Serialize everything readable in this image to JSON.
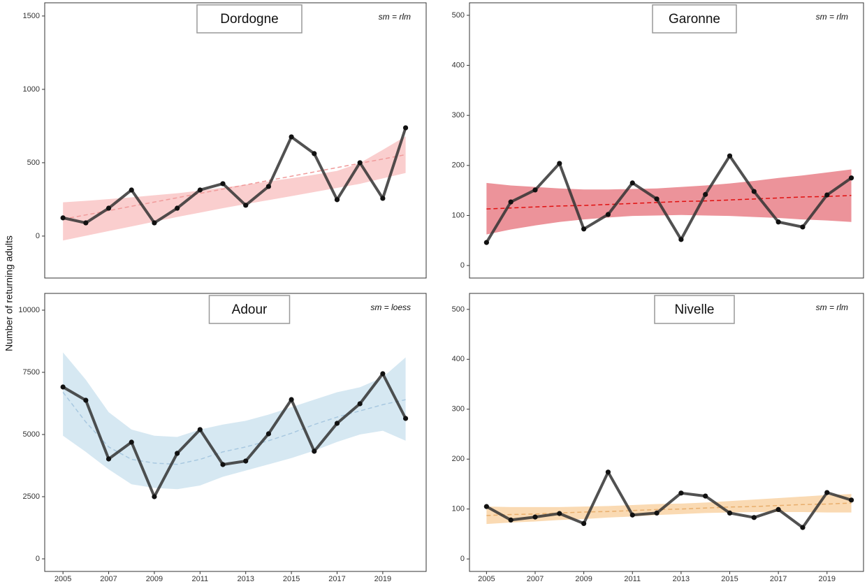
{
  "ylabel": "Number of returning adults",
  "chart_data": [
    {
      "type": "line",
      "title": "Dordogne",
      "annotation": "sm = rlm",
      "x": [
        2005,
        2006,
        2007,
        2008,
        2009,
        2010,
        2011,
        2012,
        2013,
        2014,
        2015,
        2016,
        2017,
        2018,
        2019,
        2020
      ],
      "values": [
        124,
        90,
        190,
        314,
        90,
        190,
        314,
        357,
        210,
        338,
        676,
        562,
        248,
        500,
        257,
        738
      ],
      "trend": {
        "color": "#f09a9a",
        "values": [
          115,
          144,
          173,
          203,
          232,
          261,
          291,
          320,
          349,
          379,
          408,
          437,
          467,
          496,
          525,
          555
        ]
      },
      "band": {
        "color": "#f9c6c6",
        "lower": [
          -30,
          2,
          34,
          66,
          98,
          130,
          160,
          190,
          218,
          245,
          272,
          300,
          328,
          356,
          393,
          430
        ],
        "upper": [
          230,
          240,
          252,
          264,
          278,
          292,
          310,
          330,
          350,
          372,
          394,
          418,
          444,
          498,
          588,
          680
        ]
      },
      "color": "#333333",
      "xlim": [
        2004.2,
        2020.9
      ],
      "ylim": [
        -286,
        1590
      ],
      "yticks": [
        0,
        500,
        1000,
        1500
      ]
    },
    {
      "type": "line",
      "title": "Garonne",
      "annotation": "sm = rlm",
      "x": [
        2005,
        2006,
        2007,
        2008,
        2009,
        2010,
        2011,
        2012,
        2013,
        2014,
        2015,
        2016,
        2017,
        2018,
        2019,
        2020
      ],
      "values": [
        46,
        127,
        151,
        204,
        73,
        102,
        165,
        133,
        52,
        142,
        219,
        148,
        87,
        77,
        141,
        175
      ],
      "trend": {
        "color": "#e01010",
        "values": [
          113,
          115,
          117,
          119,
          120,
          122,
          124,
          126,
          128,
          129,
          131,
          133,
          135,
          137,
          138,
          140
        ]
      },
      "band": {
        "color": "#e98088",
        "lower": [
          62,
          72,
          80,
          87,
          92,
          96,
          99,
          100,
          101,
          100,
          99,
          97,
          95,
          92,
          90,
          87
        ],
        "upper": [
          165,
          160,
          157,
          154,
          152,
          152,
          153,
          154,
          157,
          160,
          164,
          169,
          175,
          180,
          186,
          192
        ]
      },
      "color": "#333333",
      "xlim": [
        2004.3,
        2020.5
      ],
      "ylim": [
        -25,
        525
      ],
      "yticks": [
        0,
        100,
        200,
        300,
        400,
        500
      ]
    },
    {
      "type": "line",
      "title": "Adour",
      "annotation": "sm = loess",
      "x": [
        2005,
        2006,
        2007,
        2008,
        2009,
        2010,
        2011,
        2012,
        2013,
        2014,
        2015,
        2016,
        2017,
        2018,
        2019,
        2020
      ],
      "values": [
        6910,
        6376,
        4017,
        4691,
        2500,
        4242,
        5197,
        3792,
        3933,
        5028,
        6404,
        4326,
        5449,
        6236,
        7444,
        5646
      ],
      "trend": {
        "color": "#a8c8e0",
        "values": [
          6700,
          5500,
          4500,
          4000,
          3850,
          3800,
          4000,
          4300,
          4500,
          4750,
          5050,
          5400,
          5700,
          5950,
          6200,
          6400
        ]
      },
      "band": {
        "color": "#cfe4f0",
        "lower": [
          4950,
          4300,
          3600,
          3000,
          2850,
          2800,
          2950,
          3300,
          3550,
          3800,
          4050,
          4350,
          4700,
          5000,
          5150,
          4750
        ],
        "upper": [
          8300,
          7200,
          5900,
          5200,
          4950,
          4900,
          5200,
          5400,
          5550,
          5800,
          6100,
          6400,
          6700,
          6900,
          7300,
          8100
        ]
      },
      "color": "#333333",
      "xlim": [
        2004.2,
        2020.9
      ],
      "ylim": [
        -506,
        10674
      ],
      "yticks": [
        0,
        2500,
        5000,
        7500,
        10000
      ],
      "xticks": [
        2005,
        2007,
        2009,
        2011,
        2013,
        2015,
        2017,
        2019
      ]
    },
    {
      "type": "line",
      "title": "Nivelle",
      "annotation": "sm = rlm",
      "x": [
        2005,
        2006,
        2007,
        2008,
        2009,
        2010,
        2011,
        2012,
        2013,
        2014,
        2015,
        2016,
        2017,
        2018,
        2019,
        2020
      ],
      "values": [
        105,
        78,
        84,
        91,
        71,
        174,
        88,
        92,
        132,
        126,
        92,
        83,
        99,
        63,
        133,
        118
      ],
      "trend": {
        "color": "#e8ae6c",
        "values": [
          87,
          89,
          90,
          92,
          94,
          95,
          97,
          99,
          100,
          102,
          104,
          105,
          107,
          109,
          110,
          112
        ]
      },
      "band": {
        "color": "#f9d3a6",
        "lower": [
          70,
          73,
          75,
          78,
          80,
          83,
          85,
          88,
          90,
          92,
          93,
          94,
          94,
          94,
          93,
          93
        ],
        "upper": [
          105,
          104,
          104,
          104,
          105,
          106,
          108,
          110,
          111,
          113,
          116,
          119,
          122,
          125,
          128,
          130
        ]
      },
      "color": "#333333",
      "xlim": [
        2004.3,
        2020.5
      ],
      "ylim": [
        -25,
        532
      ],
      "yticks": [
        0,
        100,
        200,
        300,
        400,
        500
      ],
      "xticks": [
        2005,
        2007,
        2009,
        2011,
        2013,
        2015,
        2017,
        2019
      ]
    }
  ]
}
